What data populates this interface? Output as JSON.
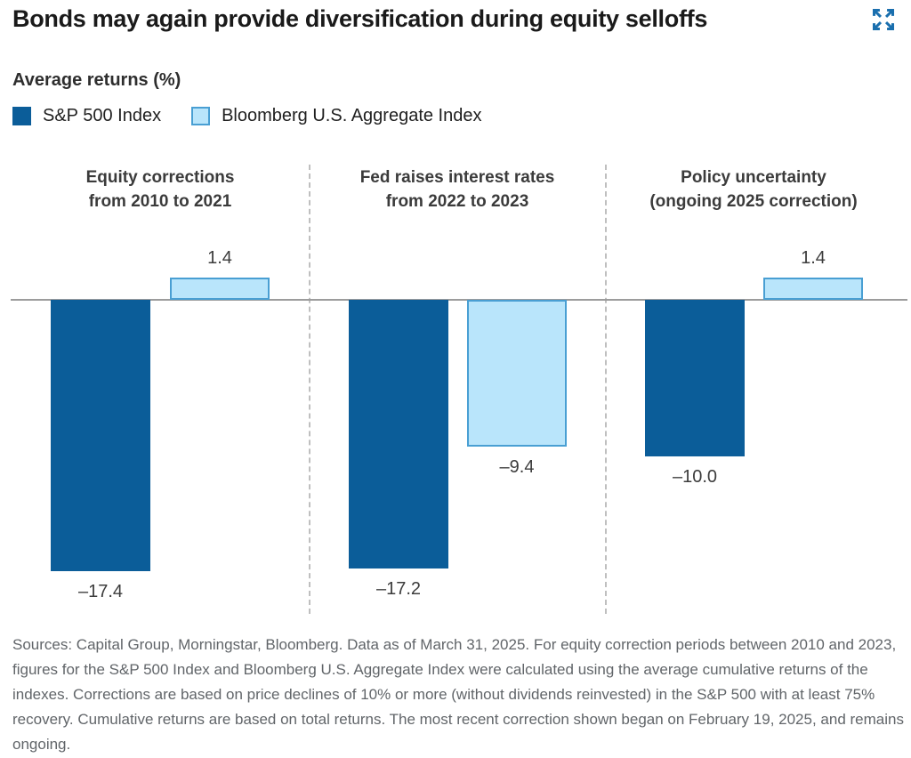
{
  "header": {
    "title": "Bonds may again provide diversification during equity selloffs",
    "subtitle": "Average returns (%)"
  },
  "legend": {
    "items": [
      {
        "label": "S&P 500 Index",
        "color": "#0b5d99",
        "border": "#0b5d99"
      },
      {
        "label": "Bloomberg U.S. Aggregate Index",
        "color": "#b9e5fb",
        "border": "#499fd3"
      }
    ]
  },
  "chart_data": {
    "type": "bar",
    "title": "Bonds may again provide diversification during equity selloffs",
    "ylabel": "Average returns (%)",
    "categories": [
      "Equity corrections from 2010 to 2021",
      "Fed raises interest rates from 2022 to 2023",
      "Policy uncertainty (ongoing 2025 correction)"
    ],
    "category_lines": [
      [
        "Equity corrections",
        "from 2010 to 2021"
      ],
      [
        "Fed raises interest rates",
        "from 2022 to 2023"
      ],
      [
        "Policy uncertainty",
        "(ongoing 2025 correction)"
      ]
    ],
    "series": [
      {
        "name": "S&P 500 Index",
        "color": "#0b5d99",
        "values": [
          -17.4,
          -17.2,
          -10.0
        ],
        "labels": [
          "–17.4",
          "–17.2",
          "–10.0"
        ]
      },
      {
        "name": "Bloomberg U.S. Aggregate Index",
        "color": "#b9e5fb",
        "border_color": "#499fd3",
        "values": [
          1.4,
          -9.4,
          1.4
        ],
        "labels": [
          "1.4",
          "–9.4",
          "1.4"
        ]
      }
    ],
    "baseline": 0,
    "ylim": [
      -19,
      3
    ],
    "grid": false,
    "legend_position": "top-left"
  },
  "colors": {
    "accent_blue": "#0b5d99",
    "light_blue_fill": "#b9e5fb",
    "light_blue_border": "#499fd3",
    "baseline_gray": "#9c9c9c",
    "divider_gray": "#bfbfbf",
    "expand_icon_blue": "#1a6fae"
  },
  "footnote": {
    "text": "Sources: Capital Group, Morningstar, Bloomberg. Data as of March 31, 2025. For equity correction periods between 2010 and 2023, figures for the S&P 500 Index and Bloomberg U.S. Aggregate Index were calculated using the average cumulative returns of the indexes. Corrections are based on price declines of 10% or more (without dividends reinvested) in the S&P 500 with at least 75% recovery. Cumulative returns are based on total returns. The most recent correction shown began on February 19, 2025, and remains ongoing."
  }
}
